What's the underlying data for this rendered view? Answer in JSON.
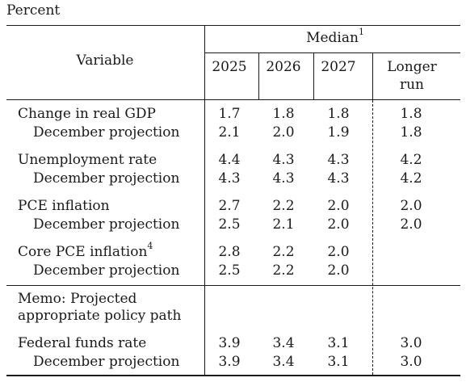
{
  "caption": "Percent",
  "header": {
    "variable": "Variable",
    "median": "Median",
    "median_note": "1",
    "years": [
      "2025",
      "2026",
      "2027"
    ],
    "longer_run_line1": "Longer",
    "longer_run_line2": "run"
  },
  "rows": {
    "gdp": {
      "label": "Change in real GDP",
      "values": [
        "1.7",
        "1.8",
        "1.8",
        "1.8"
      ]
    },
    "gdp_dec": {
      "label": "December projection",
      "values": [
        "2.1",
        "2.0",
        "1.9",
        "1.8"
      ]
    },
    "unemp": {
      "label": "Unemployment rate",
      "values": [
        "4.4",
        "4.3",
        "4.3",
        "4.2"
      ]
    },
    "unemp_dec": {
      "label": "December projection",
      "values": [
        "4.3",
        "4.3",
        "4.3",
        "4.2"
      ]
    },
    "pce": {
      "label": "PCE inflation",
      "values": [
        "2.7",
        "2.2",
        "2.0",
        "2.0"
      ]
    },
    "pce_dec": {
      "label": "December projection",
      "values": [
        "2.5",
        "2.1",
        "2.0",
        "2.0"
      ]
    },
    "core": {
      "label": "Core PCE inflation",
      "note": "4",
      "values": [
        "2.8",
        "2.2",
        "2.0"
      ]
    },
    "core_dec": {
      "label": "December projection",
      "values": [
        "2.5",
        "2.2",
        "2.0"
      ]
    },
    "ffr": {
      "label": "Federal funds rate",
      "values": [
        "3.9",
        "3.4",
        "3.1",
        "3.0"
      ]
    },
    "ffr_dec": {
      "label": "December projection",
      "values": [
        "3.9",
        "3.4",
        "3.1",
        "3.0"
      ]
    }
  },
  "memo": {
    "line1": "Memo: Projected",
    "line2": "appropriate policy path"
  }
}
